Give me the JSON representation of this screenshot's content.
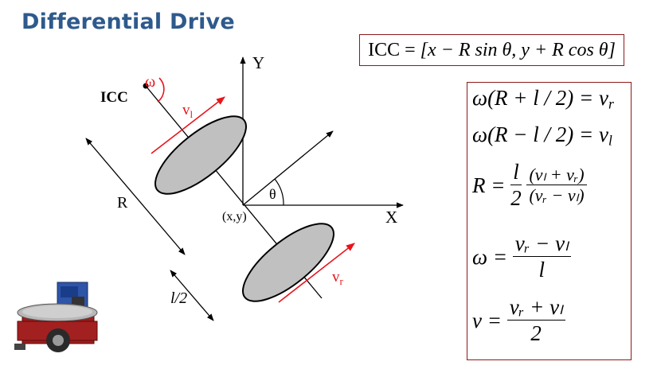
{
  "title": "Differential Drive",
  "icc_formula": {
    "lhs": "ICC",
    "rhs": "[x − R sin θ, y + R cos θ]"
  },
  "diagram": {
    "icc_label": "ICC",
    "omega_label": "ω",
    "axis_y_label": "Y",
    "axis_x_label": "X",
    "theta_label": "θ",
    "origin_label": "(x,y)",
    "radius_label": "R",
    "half_axle_label": "l/2",
    "vl_label": "v",
    "vl_sub": "l",
    "vr_label": "v",
    "vr_sub": "r",
    "colors": {
      "accent": "#e8141b",
      "wheel": "#c0c0c0",
      "box_border": "#8b1a1a",
      "title": "#2e5a8c"
    }
  },
  "equations": {
    "eq1": "ω(R + l / 2) = v",
    "eq1_sub": "r",
    "eq2": "ω(R − l / 2) = v",
    "eq2_sub": "l",
    "eq3_lhs": "R =",
    "eq3_frac1_num": "l",
    "eq3_frac1_den": "2",
    "eq3_frac2_num": "(vₗ + vᵣ)",
    "eq3_frac2_den": "(vᵣ − vₗ)",
    "eq4_lhs": "ω =",
    "eq4_num": "vᵣ − vₗ",
    "eq4_den": "l",
    "eq5_lhs": "v =",
    "eq5_num": "vᵣ + vₗ",
    "eq5_den": "2"
  }
}
